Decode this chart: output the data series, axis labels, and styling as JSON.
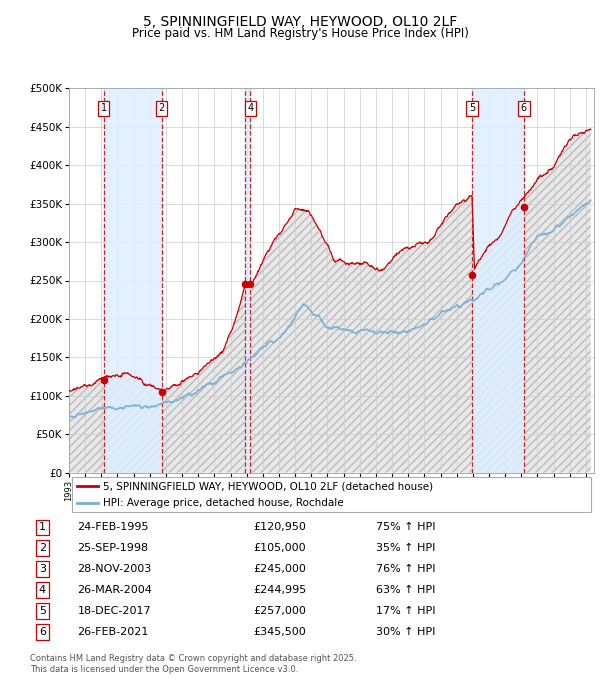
{
  "title": "5, SPINNINGFIELD WAY, HEYWOOD, OL10 2LF",
  "subtitle": "Price paid vs. HM Land Registry's House Price Index (HPI)",
  "ylim": [
    0,
    500000
  ],
  "yticks": [
    0,
    50000,
    100000,
    150000,
    200000,
    250000,
    300000,
    350000,
    400000,
    450000,
    500000
  ],
  "ytick_labels": [
    "£0",
    "£50K",
    "£100K",
    "£150K",
    "£200K",
    "£250K",
    "£300K",
    "£350K",
    "£400K",
    "£450K",
    "£500K"
  ],
  "x_start_year": 1993,
  "x_end_year": 2025,
  "purchases": [
    {
      "num": 1,
      "date": "1995-02-24",
      "price": 120950,
      "pct": "75%",
      "label": "24-FEB-1995",
      "price_str": "£120,950"
    },
    {
      "num": 2,
      "date": "1998-09-25",
      "price": 105000,
      "pct": "35%",
      "label": "25-SEP-1998",
      "price_str": "£105,000"
    },
    {
      "num": 3,
      "date": "2003-11-28",
      "price": 245000,
      "pct": "76%",
      "label": "28-NOV-2003",
      "price_str": "£245,000"
    },
    {
      "num": 4,
      "date": "2004-03-26",
      "price": 244995,
      "pct": "63%",
      "label": "26-MAR-2004",
      "price_str": "£244,995"
    },
    {
      "num": 5,
      "date": "2017-12-18",
      "price": 257000,
      "pct": "17%",
      "label": "18-DEC-2017",
      "price_str": "£257,000"
    },
    {
      "num": 6,
      "date": "2021-02-26",
      "price": 345500,
      "pct": "30%",
      "label": "26-FEB-2021",
      "price_str": "£345,500"
    }
  ],
  "red_line_color": "#cc0000",
  "blue_line_color": "#7aaddb",
  "purchase_marker_color": "#cc0000",
  "vline_color": "#cc0000",
  "highlight_bg": "#ddeeff",
  "legend_label_red": "5, SPINNINGFIELD WAY, HEYWOOD, OL10 2LF (detached house)",
  "legend_label_blue": "HPI: Average price, detached house, Rochdale",
  "footer": "Contains HM Land Registry data © Crown copyright and database right 2025.\nThis data is licensed under the Open Government Licence v3.0.",
  "title_fontsize": 10,
  "subtitle_fontsize": 8.5,
  "tick_fontsize": 7.5,
  "legend_fontsize": 7.5,
  "table_fontsize": 8
}
